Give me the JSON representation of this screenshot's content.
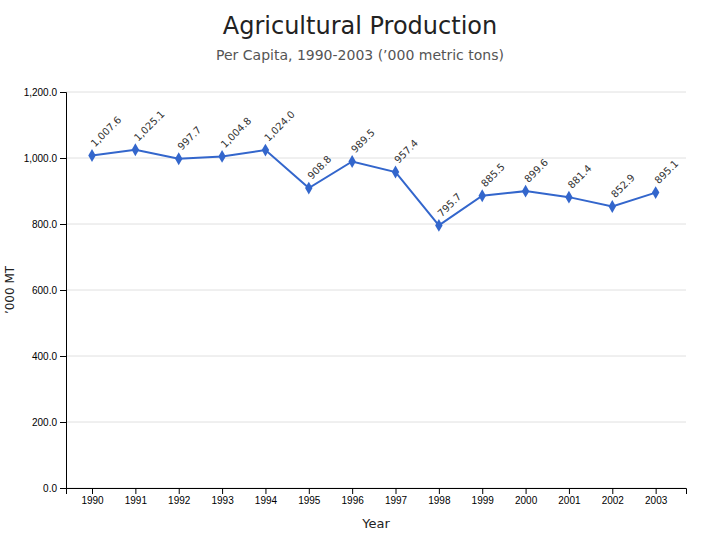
{
  "chart_data": {
    "type": "line",
    "title": "Agricultural Production",
    "subtitle": "Per Capita, 1990-2003  (’000 metric tons)",
    "xlabel": "Year",
    "ylabel": "’000 MT",
    "x": [
      1990,
      1991,
      1992,
      1993,
      1994,
      1995,
      1996,
      1997,
      1998,
      1999,
      2000,
      2001,
      2002,
      2003
    ],
    "values": [
      1007.6,
      1025.1,
      997.7,
      1004.8,
      1024.0,
      908.8,
      989.5,
      957.4,
      795.7,
      885.5,
      899.6,
      881.4,
      852.9,
      895.1
    ],
    "value_labels": [
      "1,007.6",
      "1,025.1",
      "997.7",
      "1,004.8",
      "1,024.0",
      "908.8",
      "989.5",
      "957.4",
      "795.7",
      "885.5",
      "899.6",
      "881.4",
      "852.9",
      "895.1"
    ],
    "data_labels": true,
    "color": "#3366CC",
    "marker": "diamond",
    "xlim": [
      1989.4,
      2003.7
    ],
    "xticks": [
      1990,
      1991,
      1992,
      1993,
      1994,
      1995,
      1996,
      1997,
      1998,
      1999,
      2000,
      2001,
      2002,
      2003
    ],
    "ylim": [
      0,
      1200
    ],
    "yticks": [
      {
        "value": 0.0,
        "label": "0.0"
      },
      {
        "value": 200.0,
        "label": "200.0"
      },
      {
        "value": 400.0,
        "label": "400.0"
      },
      {
        "value": 600.0,
        "label": "600.0"
      },
      {
        "value": 800.0,
        "label": "800.0"
      },
      {
        "value": 1000.0,
        "label": "1,000.0"
      },
      {
        "value": 1200.0,
        "label": "1,200.0"
      }
    ],
    "grid": true
  }
}
